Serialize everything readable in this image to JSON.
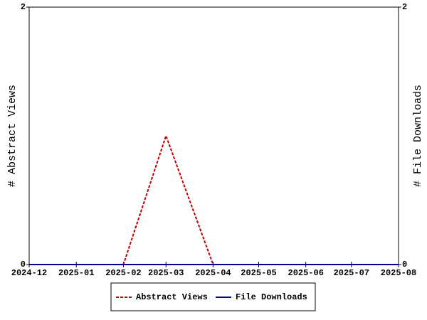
{
  "chart_data": {
    "type": "line",
    "x": [
      "2024-12",
      "2025-01",
      "2025-02",
      "2025-03",
      "2025-04",
      "2025-05",
      "2025-06",
      "2025-07",
      "2025-08"
    ],
    "xlim": [
      "2024-12",
      "2025-08"
    ],
    "y_label": "# Abstract Views",
    "y2_label": "# File Downloads",
    "ylim": [
      0,
      2
    ],
    "yticks": [
      0,
      2
    ],
    "y2lim": [
      0,
      2
    ],
    "y2ticks": [
      0,
      2
    ],
    "series": [
      {
        "name": "Abstract Views",
        "color": "#c00000",
        "linestyle": "dashed",
        "values": [
          0,
          0,
          0,
          1,
          0,
          0,
          0,
          0,
          0
        ]
      },
      {
        "name": "File Downloads",
        "color": "#00008b",
        "linestyle": "solid",
        "axis": "y2",
        "values": [
          0,
          0,
          0,
          0,
          0,
          0,
          0,
          0,
          0
        ]
      }
    ]
  }
}
